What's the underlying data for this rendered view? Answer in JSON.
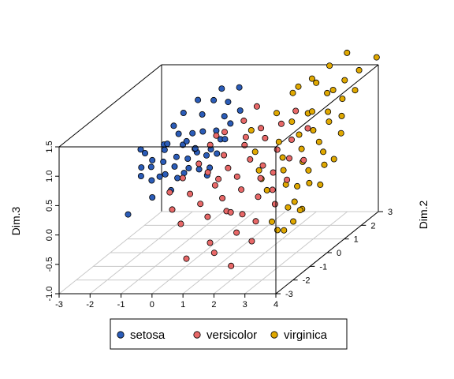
{
  "chart_data": {
    "type": "scatter3d",
    "title": "",
    "xlabel": "",
    "ylabel": "Dim.2",
    "zlabel": "Dim.3",
    "xlim": [
      -3,
      4
    ],
    "ylim": [
      -3,
      3
    ],
    "zlim": [
      -1,
      1.5
    ],
    "x_ticks": [
      "-3",
      "-2",
      "-1",
      "0",
      "1",
      "2",
      "3",
      "4"
    ],
    "y_ticks": [
      "-3",
      "-2",
      "-1",
      "0",
      "1",
      "2",
      "3"
    ],
    "z_ticks": [
      "-1.0",
      "-0.5",
      "0.0",
      "0.5",
      "1.0",
      "1.5"
    ],
    "grid": true,
    "box": true,
    "legend_position": "bottom",
    "series": [
      {
        "name": "setosa",
        "color": "#2b5cb8",
        "points": [
          [
            -2.1,
            0.4,
            0.6
          ],
          [
            -2.0,
            0.0,
            0.45
          ],
          [
            -1.9,
            -0.2,
            0.35
          ],
          [
            -1.8,
            -0.4,
            0.85
          ],
          [
            -1.7,
            0.1,
            0.55
          ],
          [
            -1.6,
            0.6,
            0.7
          ],
          [
            -1.5,
            -0.3,
            0.3
          ],
          [
            -1.45,
            0.9,
            0.95
          ],
          [
            -1.4,
            0.2,
            0.5
          ],
          [
            -1.35,
            -0.6,
            0.6
          ],
          [
            -1.3,
            1.2,
            1.1
          ],
          [
            -1.25,
            0.0,
            0.75
          ],
          [
            -1.2,
            0.5,
            0.35
          ],
          [
            -1.15,
            -0.9,
            0.15
          ],
          [
            -1.1,
            0.8,
            0.65
          ],
          [
            -1.05,
            -0.2,
            0.9
          ],
          [
            -1.0,
            1.5,
            1.25
          ],
          [
            -1.0,
            0.3,
            0.2
          ],
          [
            -0.95,
            -0.5,
            0.45
          ],
          [
            -0.9,
            1.0,
            0.8
          ],
          [
            -0.85,
            0.1,
            1.0
          ],
          [
            -0.8,
            -1.1,
            0.55
          ],
          [
            -0.8,
            0.6,
            0.3
          ],
          [
            -0.75,
            1.3,
            1.05
          ],
          [
            -0.7,
            -0.3,
            0.7
          ],
          [
            -0.7,
            0.9,
            0.5
          ],
          [
            -0.65,
            0.2,
            0.85
          ],
          [
            -0.6,
            1.7,
            1.2
          ],
          [
            -0.6,
            -0.8,
            0.25
          ],
          [
            -0.55,
            0.5,
            0.65
          ],
          [
            -0.5,
            1.1,
            0.4
          ],
          [
            -0.5,
            0.0,
            0.6
          ],
          [
            -0.45,
            1.9,
            1.35
          ],
          [
            -0.4,
            0.7,
            0.9
          ],
          [
            -0.4,
            -0.4,
            0.45
          ],
          [
            -0.35,
            1.4,
            0.75
          ],
          [
            -0.3,
            0.3,
            0.35
          ],
          [
            -0.3,
            2.0,
            1.1
          ],
          [
            -0.25,
            0.9,
            0.55
          ],
          [
            -0.2,
            1.6,
            0.95
          ],
          [
            -0.2,
            -0.1,
            0.8
          ],
          [
            -0.15,
            0.5,
            0.2
          ],
          [
            -0.1,
            1.2,
            0.65
          ],
          [
            -0.05,
            2.2,
            1.3
          ],
          [
            0.0,
            0.8,
            0.5
          ],
          [
            0.05,
            1.5,
            0.85
          ],
          [
            0.1,
            0.2,
            0.4
          ],
          [
            -1.6,
            -1.5,
            0.0
          ],
          [
            0.15,
            1.0,
            0.7
          ],
          [
            0.2,
            1.8,
            1.0
          ]
        ]
      },
      {
        "name": "versicolor",
        "color": "#e86868",
        "points": [
          [
            -0.2,
            -1.6,
            0.4
          ],
          [
            0.0,
            -1.2,
            0.55
          ],
          [
            0.1,
            -2.0,
            0.2
          ],
          [
            0.3,
            -0.8,
            0.7
          ],
          [
            0.4,
            -1.5,
            0.35
          ],
          [
            0.5,
            -0.5,
            0.95
          ],
          [
            0.6,
            -2.4,
            0.05
          ],
          [
            0.7,
            -1.0,
            0.6
          ],
          [
            0.8,
            -0.2,
            1.1
          ],
          [
            0.9,
            -1.8,
            0.25
          ],
          [
            1.0,
            -0.6,
            0.8
          ],
          [
            1.0,
            -2.8,
            -0.45
          ],
          [
            1.1,
            -1.3,
            0.45
          ],
          [
            1.2,
            0.2,
            1.2
          ],
          [
            1.3,
            -2.1,
            0.1
          ],
          [
            1.3,
            -0.9,
            0.65
          ],
          [
            1.4,
            0.6,
            1.35
          ],
          [
            1.5,
            -1.6,
            0.3
          ],
          [
            1.5,
            -0.3,
            0.9
          ],
          [
            1.6,
            -2.5,
            -0.25
          ],
          [
            1.7,
            -1.1,
            0.55
          ],
          [
            1.7,
            0.3,
            1.05
          ],
          [
            1.8,
            -1.9,
            0.15
          ],
          [
            1.9,
            -0.7,
            0.75
          ],
          [
            1.9,
            -2.8,
            -0.35
          ],
          [
            2.0,
            -1.4,
            0.4
          ],
          [
            2.0,
            0.0,
            0.95
          ],
          [
            2.1,
            -2.2,
            0.2
          ],
          [
            2.2,
            -0.5,
            0.6
          ],
          [
            2.2,
            -1.7,
            0.05
          ],
          [
            2.3,
            0.4,
            1.1
          ],
          [
            2.4,
            -1.0,
            0.5
          ],
          [
            2.4,
            -2.4,
            -0.1
          ],
          [
            2.5,
            -0.2,
            0.8
          ],
          [
            2.6,
            -1.5,
            0.3
          ],
          [
            2.6,
            0.7,
            1.25
          ],
          [
            2.7,
            -0.8,
            0.55
          ],
          [
            2.8,
            -2.0,
            0.0
          ],
          [
            2.8,
            0.1,
            0.9
          ],
          [
            2.9,
            -1.2,
            0.35
          ],
          [
            3.0,
            -0.4,
            0.7
          ],
          [
            3.0,
            -2.6,
            -0.2
          ],
          [
            3.1,
            0.5,
            1.0
          ],
          [
            3.2,
            -1.6,
            0.2
          ],
          [
            3.2,
            -0.9,
            0.45
          ],
          [
            0.6,
            -0.2,
            0.3
          ],
          [
            1.1,
            0.5,
            0.85
          ],
          [
            2.5,
            -2.9,
            -0.55
          ],
          [
            0.2,
            0.4,
            0.9
          ],
          [
            3.3,
            -0.1,
            0.6
          ]
        ]
      },
      {
        "name": "virginica",
        "color": "#e0a800",
        "points": [
          [
            1.0,
            1.0,
            0.85
          ],
          [
            1.4,
            0.5,
            0.6
          ],
          [
            1.6,
            1.4,
            1.05
          ],
          [
            1.8,
            0.0,
            0.4
          ],
          [
            1.9,
            1.8,
            1.3
          ],
          [
            2.0,
            0.8,
            0.7
          ],
          [
            2.1,
            -0.4,
            0.35
          ],
          [
            2.2,
            1.2,
            0.95
          ],
          [
            2.3,
            2.2,
            1.45
          ],
          [
            2.4,
            0.3,
            0.55
          ],
          [
            2.5,
            1.6,
            1.0
          ],
          [
            2.5,
            -0.8,
            0.25
          ],
          [
            2.6,
            0.9,
            0.8
          ],
          [
            2.7,
            2.5,
            1.6
          ],
          [
            2.7,
            -0.2,
            0.45
          ],
          [
            2.8,
            1.3,
            1.1
          ],
          [
            2.9,
            0.5,
            0.65
          ],
          [
            2.9,
            2.0,
            1.25
          ],
          [
            3.0,
            -0.6,
            0.3
          ],
          [
            3.0,
            1.0,
            0.85
          ],
          [
            3.1,
            2.8,
            1.75
          ],
          [
            3.1,
            0.2,
            0.5
          ],
          [
            3.2,
            1.5,
            1.05
          ],
          [
            3.2,
            -0.3,
            0.2
          ],
          [
            3.3,
            0.8,
            0.7
          ],
          [
            3.3,
            2.3,
            1.4
          ],
          [
            3.4,
            0.0,
            0.4
          ],
          [
            3.4,
            1.2,
            0.95
          ],
          [
            3.5,
            -1.0,
            0.1
          ],
          [
            3.5,
            1.8,
            1.2
          ],
          [
            3.6,
            0.5,
            0.6
          ],
          [
            3.6,
            2.6,
            1.5
          ],
          [
            3.7,
            -0.5,
            0.3
          ],
          [
            3.7,
            1.4,
            1.0
          ],
          [
            3.8,
            0.2,
            0.45
          ],
          [
            3.8,
            2.0,
            1.3
          ],
          [
            3.9,
            -1.4,
            0.05
          ],
          [
            3.9,
            1.0,
            0.8
          ],
          [
            4.0,
            2.9,
            1.65
          ],
          [
            4.0,
            0.4,
            0.5
          ],
          [
            3.1,
            -1.6,
            -0.1
          ],
          [
            3.4,
            -1.2,
            0.05
          ],
          [
            3.6,
            -1.8,
            -0.2
          ],
          [
            3.8,
            -1.1,
            0.0
          ],
          [
            4.0,
            -0.4,
            0.25
          ],
          [
            2.3,
            1.4,
            1.5
          ],
          [
            2.6,
            1.9,
            1.45
          ],
          [
            3.2,
            1.8,
            1.35
          ],
          [
            3.5,
            -2.0,
            -0.15
          ],
          [
            3.9,
            -1.8,
            -0.05
          ]
        ]
      }
    ]
  }
}
